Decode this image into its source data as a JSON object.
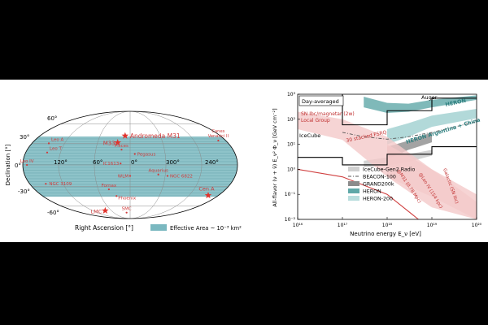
{
  "chart_data": [
    {
      "type": "scatter",
      "projection": "mollweide",
      "xlabel": "Right Ascension [°]",
      "ylabel": "Declination [°]",
      "ra_tick_labels": [
        "120°",
        "60°",
        "0°",
        "300°",
        "240°"
      ],
      "dec_tick_labels": [
        "60°",
        "30°",
        "0°",
        "-30°",
        "-60°"
      ],
      "legend": {
        "label": "Effective Area ~ 10⁻³ km²",
        "color": "#7ab8c0"
      },
      "band_dec_range": [
        -45,
        40
      ],
      "sources": [
        {
          "name": "Andromeda M31",
          "ra": 10,
          "dec": 41,
          "marker": "star"
        },
        {
          "name": "M33",
          "ra": 23,
          "dec": 31,
          "marker": "star"
        },
        {
          "name": "LMC",
          "ra": 80,
          "dec": -69,
          "marker": "star"
        },
        {
          "name": "Cen A",
          "ra": 201,
          "dec": -43,
          "marker": "star"
        },
        {
          "name": "Leo A",
          "ra": 149,
          "dec": 30,
          "marker": "dot"
        },
        {
          "name": "Leo T",
          "ra": 143,
          "dec": 17,
          "marker": "dot"
        },
        {
          "name": "Leo IV",
          "ra": 173,
          "dec": 0,
          "marker": "dot"
        },
        {
          "name": "NGC 3109",
          "ra": 151,
          "dec": -26,
          "marker": "dot"
        },
        {
          "name": "Pisces",
          "ra": 15,
          "dec": 21,
          "marker": "dot"
        },
        {
          "name": "Pegasus",
          "ra": 352,
          "dec": 15,
          "marker": "dot"
        },
        {
          "name": "IC1613",
          "ra": 16,
          "dec": 2,
          "marker": "dot"
        },
        {
          "name": "WLM",
          "ra": 0,
          "dec": -15,
          "marker": "dot"
        },
        {
          "name": "Aquarius",
          "ra": 312,
          "dec": -13,
          "marker": "dot"
        },
        {
          "name": "NGC 6822",
          "ra": 296,
          "dec": -15,
          "marker": "dot"
        },
        {
          "name": "Fornax",
          "ra": 40,
          "dec": -34,
          "marker": "dot"
        },
        {
          "name": "Phoenix",
          "ra": 28,
          "dec": -44,
          "marker": "dot"
        },
        {
          "name": "SMC",
          "ra": 13,
          "dec": -73,
          "marker": "dot"
        },
        {
          "name": "Canes Venatici II",
          "ra": 194,
          "dec": 34,
          "marker": "dot"
        }
      ]
    },
    {
      "type": "line",
      "title": "Day-averaged",
      "xlabel": "Neutrino energy E_ν [eV]",
      "ylabel": "All-flavor (ν + ν̄) E_ν² Φ_ν [GeV cm⁻²]",
      "xscale": "log",
      "yscale": "log",
      "xlim": [
        1e+16,
        1e+20
      ],
      "ylim": [
        0.01,
        1000
      ],
      "x_tick_labels": [
        "10¹⁶",
        "10¹⁷",
        "10¹⁸",
        "10¹⁹",
        "10²⁰"
      ],
      "y_tick_labels": [
        "10⁻²",
        "10⁻¹",
        "10⁰",
        "10¹",
        "10²",
        "10³"
      ],
      "legend": [
        {
          "name": "IceCube-Gen2 Radio",
          "style": "band",
          "color": "#d0d0d0"
        },
        {
          "name": "BEACON-100",
          "style": "dashdot",
          "color": "#555555"
        },
        {
          "name": "GRAND200k",
          "style": "band",
          "color": "#8c8c8c"
        },
        {
          "name": "HERON",
          "style": "band",
          "color": "#5fa8a8"
        },
        {
          "name": "HERON-200",
          "style": "band",
          "color": "#b9dede"
        }
      ],
      "series": [
        {
          "name": "IceCube",
          "style": "line",
          "color": "#000000",
          "x": [
            1e+16,
            1e+17,
            1e+17,
            1e+18,
            1e+18,
            1e+19,
            1e+19,
            1e+20
          ],
          "y": [
            3,
            3,
            1.5,
            1.5,
            4,
            4,
            8,
            8
          ]
        },
        {
          "name": "Auger",
          "style": "line",
          "color": "#000000",
          "x": [
            1e+17,
            1e+17,
            1e+18,
            1e+18,
            1e+19,
            1e+19,
            1e+20
          ],
          "y": [
            1000,
            60,
            60,
            220,
            220,
            700,
            700
          ]
        },
        {
          "name": "HERON",
          "style": "band",
          "color": "#5fa8a8",
          "x": [
            3e+17,
            1e+18,
            3e+18,
            1e+19,
            1e+20
          ],
          "y_low": [
            300,
            180,
            200,
            300,
            600
          ],
          "y_high": [
            800,
            450,
            420,
            600,
            900
          ]
        },
        {
          "name": "HERON Argentina + China",
          "style": "band",
          "color": "#9fcfcf",
          "x": [
            1e+18,
            3e+18,
            1e+19,
            1e+20
          ],
          "y_low": [
            10,
            20,
            50,
            110
          ],
          "y_high": [
            40,
            70,
            140,
            260
          ]
        },
        {
          "name": "GRAND200k",
          "style": "band",
          "color": "#8c8c8c",
          "x": [
            1e+18,
            3e+18,
            1e+19
          ],
          "y_low": [
            2.5,
            6,
            12
          ],
          "y_high": [
            8,
            14,
            30
          ]
        },
        {
          "name": "IceCube-Gen2 Radio",
          "style": "band",
          "color": "#c8c8c8",
          "x": [
            3e+17,
            1e+18,
            3e+18,
            1e+19
          ],
          "y_low": [
            1.2,
            1.4,
            2,
            3.5
          ],
          "y_high": [
            2.2,
            3,
            4,
            6
          ]
        },
        {
          "name": "BEACON-100",
          "style": "dashdot",
          "color": "#555555",
          "x": [
            1e+17,
            3e+17,
            1e+18,
            3e+18,
            1e+19,
            1e+20
          ],
          "y": [
            30,
            20,
            16,
            20,
            30,
            80
          ]
        },
        {
          "name": "SN Ibc/magnetar (2w) Local Group",
          "style": "band",
          "color": "#f4c9c9",
          "x": [
            1e+16,
            1e+17,
            1e+18,
            1e+19,
            1e+20
          ],
          "y_low": [
            40,
            15,
            0.5,
            0.03,
            0.01
          ],
          "y_high": [
            200,
            100,
            20,
            1,
            0.05
          ]
        },
        {
          "name": "30 stacked FSRQ",
          "style": "line",
          "color": "#d04040",
          "x": [
            1e+16,
            1e+17,
            1e+18,
            5e+18
          ],
          "y": [
            1,
            0.5,
            0.1,
            0.01
          ]
        },
        {
          "name": "Galactic (SN Ibc)",
          "style": "band",
          "color": "#f4c9c9",
          "x": [
            1e+18,
            1e+19,
            1e+20
          ],
          "y_low": [
            0.5,
            0.08,
            0.01
          ],
          "y_high": [
            10,
            1,
            0.1
          ]
        }
      ],
      "annotations": [
        "IceCube",
        "Auger",
        "HERON",
        "HERON Argentina + China",
        "SN Ibc/magnetar (2w)",
        "Local Group",
        "30 stacked FSRQ",
        "@M31 (0.78 Mpc)",
        "@Leo IV (154 kpc)",
        "Galactic (SN Ibc)"
      ]
    }
  ]
}
